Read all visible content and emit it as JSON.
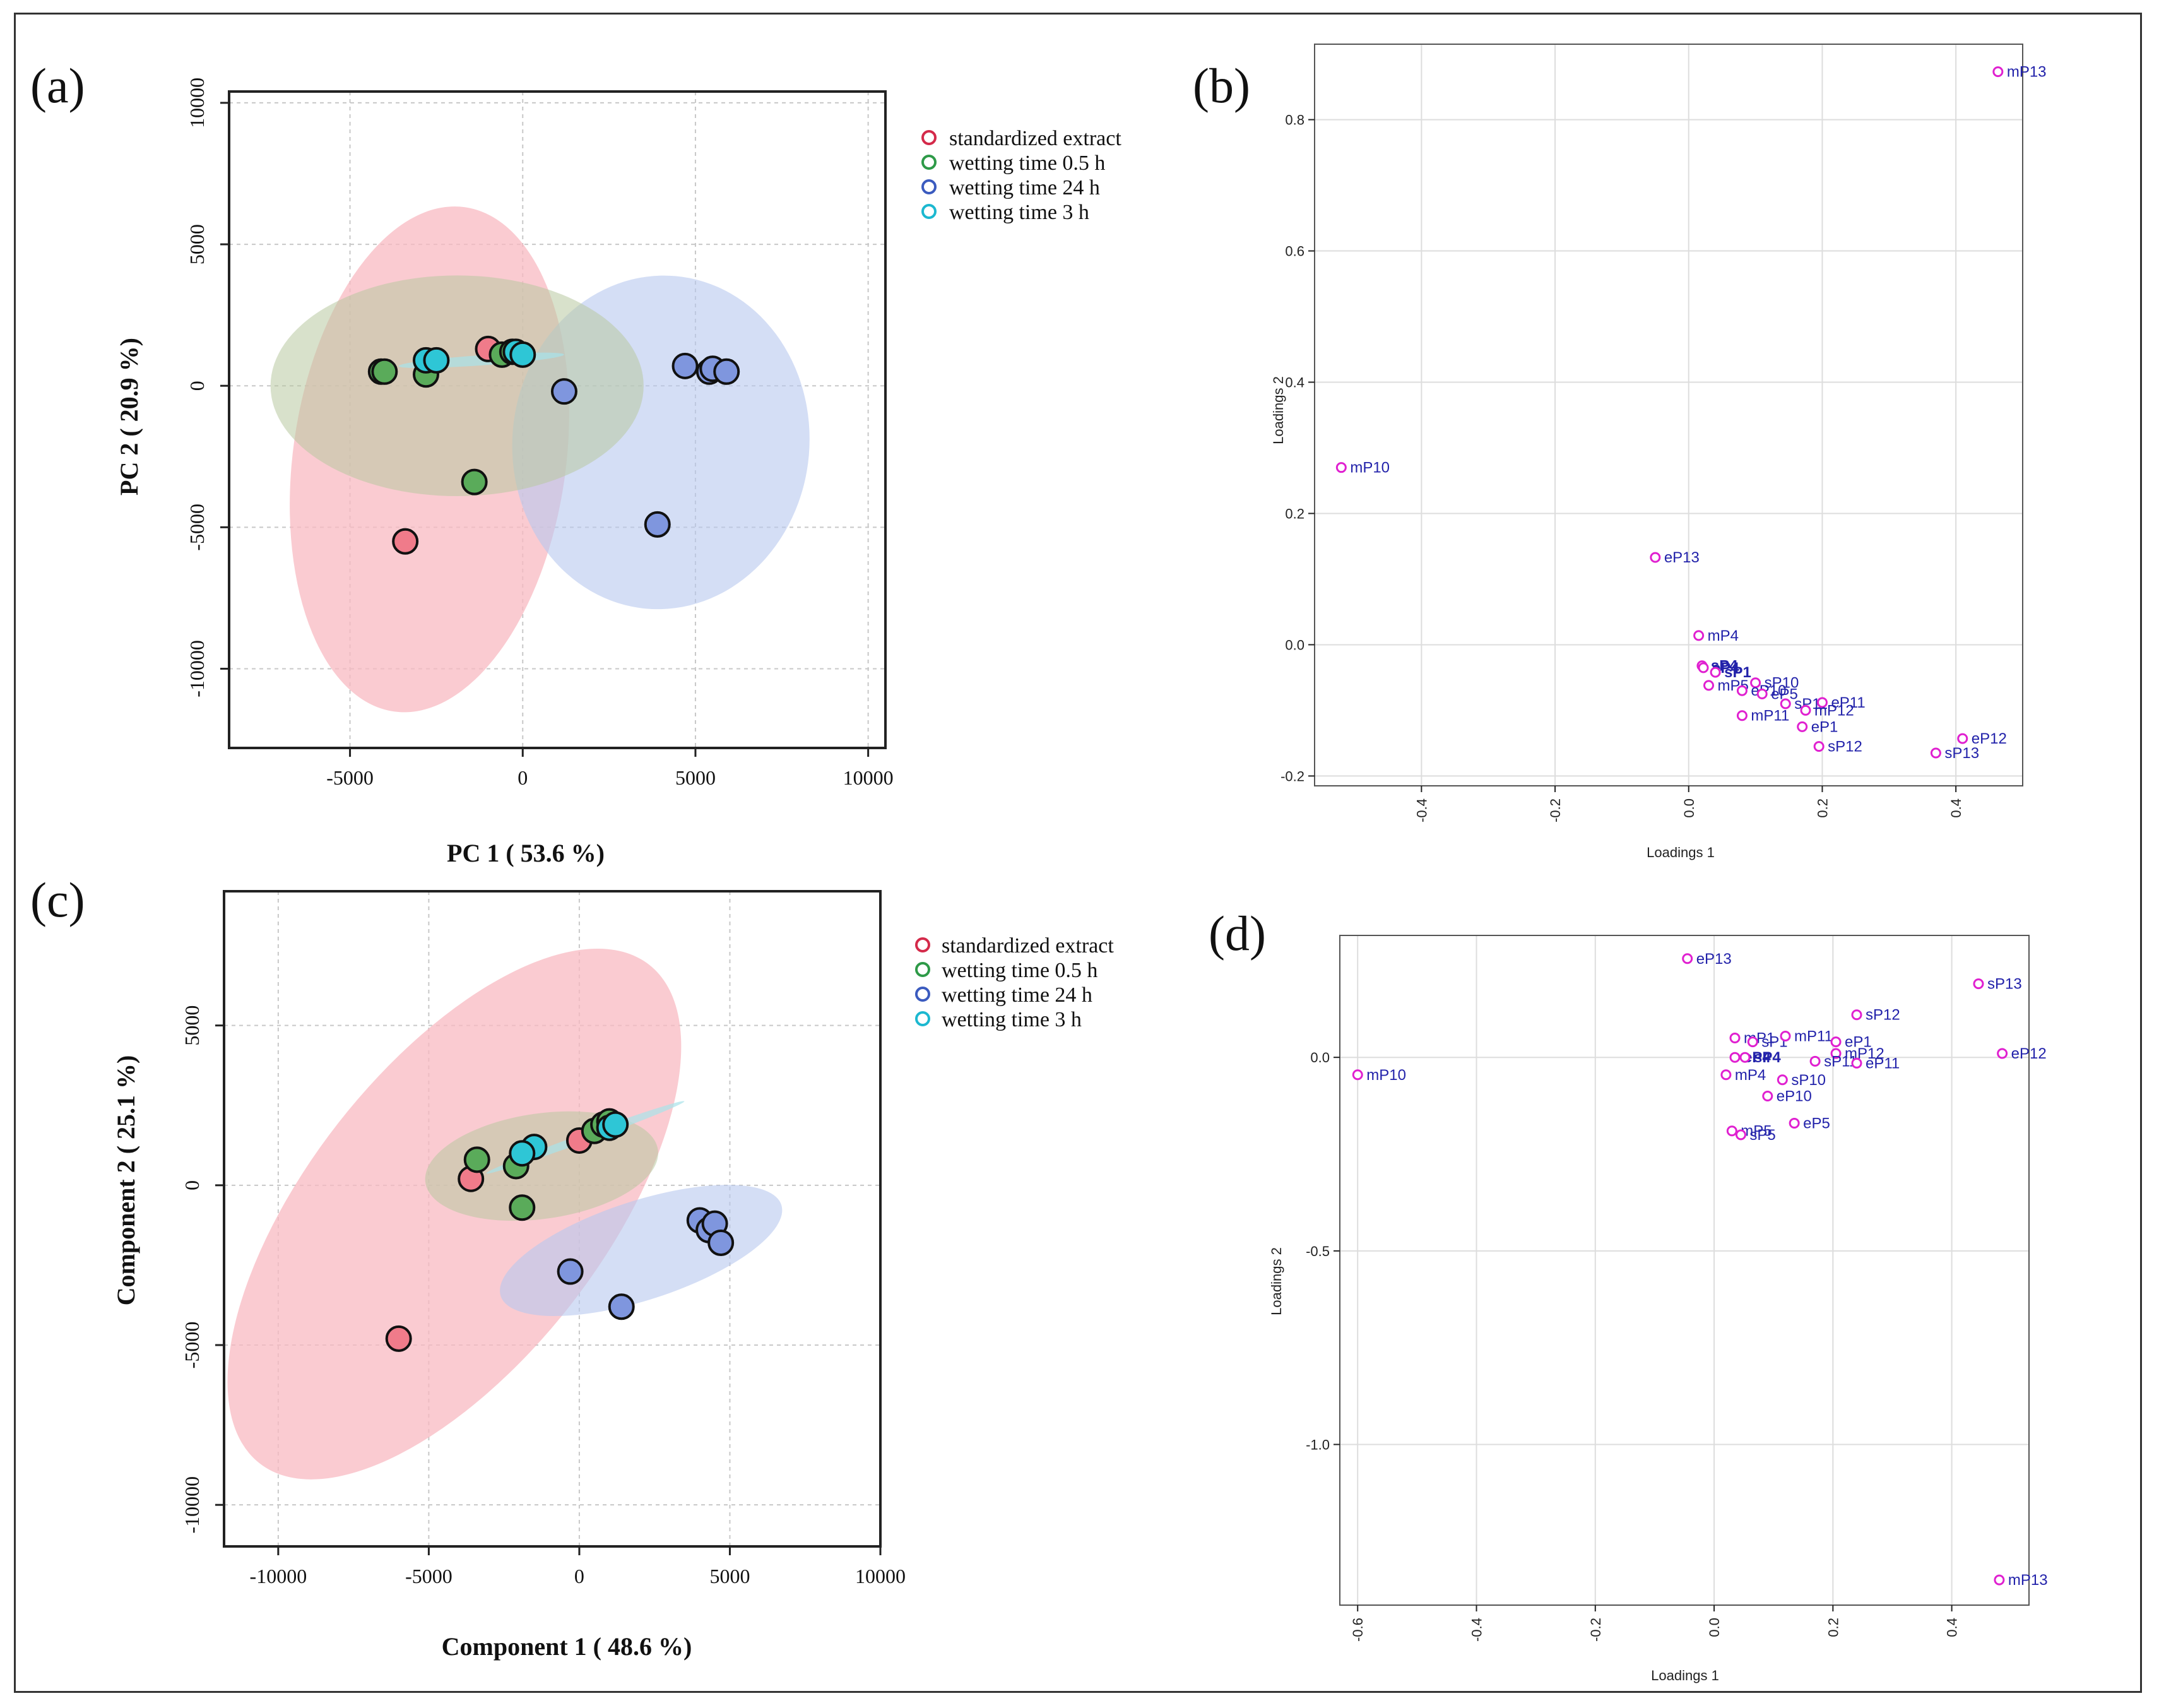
{
  "colors": {
    "standardized": "#f07b8a",
    "wetting_0_5": "#5aab5a",
    "wetting_24": "#7f96de",
    "wetting_3": "#2ec6d6",
    "ellipse_std": "#f8b9c2",
    "ellipse_05": "#b8c9a0",
    "ellipse_24": "#b8c8ee",
    "ellipse_3": "#a8e2ea",
    "loading_point": "#e020d0",
    "loading_label": "#2222aa"
  },
  "chart_data": [
    {
      "panel": "(a)",
      "type": "scatter",
      "xlabel": "PC 1 ( 53.6 %)",
      "ylabel": "PC 2 ( 20.9 %)",
      "xlim": [
        -8500,
        10500
      ],
      "ylim": [
        -12800,
        10400
      ],
      "xticks": [
        -5000,
        0,
        5000,
        10000
      ],
      "xtick_labels": [
        "-5000",
        "0",
        "5000",
        "10000"
      ],
      "yticks": [
        -10000,
        -5000,
        0,
        5000,
        10000
      ],
      "ytick_labels": [
        "-10000",
        "-5000",
        "0",
        "5000",
        "10000"
      ],
      "legend": [
        {
          "label": "standardized extract",
          "color_key": "standardized"
        },
        {
          "label": "wetting time 0.5 h",
          "color_key": "wetting_0_5"
        },
        {
          "label": "wetting time 24 h",
          "color_key": "wetting_24"
        },
        {
          "label": "wetting time 3 h",
          "color_key": "wetting_3"
        }
      ],
      "ellipses": [
        {
          "group": "standardized",
          "cx": -2700,
          "cy": -2600,
          "rx": 3950,
          "ry": 9000,
          "rot": 8,
          "color_key": "ellipse_std",
          "opacity": 0.75
        },
        {
          "group": "wetting_24",
          "cx": 4000,
          "cy": -2000,
          "rx": 4300,
          "ry": 5900,
          "rot": 5,
          "color_key": "ellipse_24",
          "opacity": 0.6
        },
        {
          "group": "wetting_0_5",
          "cx": -1900,
          "cy": 0,
          "rx": 5400,
          "ry": 3900,
          "rot": 0,
          "color_key": "ellipse_05",
          "opacity": 0.55
        },
        {
          "group": "wetting_3",
          "cx": -1200,
          "cy": 900,
          "rx": 2400,
          "ry": 180,
          "rot": -4,
          "color_key": "ellipse_3",
          "opacity": 0.7
        }
      ],
      "series": [
        {
          "name": "standardized extract",
          "color_key": "standardized",
          "points": [
            [
              -1000,
              1300
            ],
            [
              -3400,
              -5500
            ]
          ]
        },
        {
          "name": "wetting time 0.5 h",
          "color_key": "wetting_0_5",
          "points": [
            [
              -4100,
              500
            ],
            [
              -4000,
              500
            ],
            [
              -2800,
              400
            ],
            [
              -1400,
              -3400
            ],
            [
              -600,
              1100
            ],
            [
              -300,
              1200
            ]
          ]
        },
        {
          "name": "wetting time 24 h",
          "color_key": "wetting_24",
          "points": [
            [
              1200,
              -200
            ],
            [
              4700,
              700
            ],
            [
              5400,
              500
            ],
            [
              5500,
              600
            ],
            [
              5900,
              500
            ],
            [
              3900,
              -4900
            ]
          ]
        },
        {
          "name": "wetting time 3 h",
          "color_key": "wetting_3",
          "points": [
            [
              -2800,
              900
            ],
            [
              -2500,
              900
            ],
            [
              -200,
              1200
            ],
            [
              0,
              1100
            ]
          ]
        }
      ]
    },
    {
      "panel": "(b)",
      "type": "scatter",
      "xlabel": "Loadings 1",
      "ylabel": "Loadings 2",
      "xlim": [
        -0.56,
        0.5
      ],
      "ylim": [
        -0.215,
        0.915
      ],
      "xticks": [
        -0.4,
        -0.2,
        0.0,
        0.2,
        0.4
      ],
      "xtick_labels": [
        "-0.4",
        "-0.2",
        "0.0",
        "0.2",
        "0.4"
      ],
      "yticks": [
        -0.2,
        0.0,
        0.2,
        0.4,
        0.6,
        0.8
      ],
      "ytick_labels": [
        "-0.2",
        "0.0",
        "0.2",
        "0.4",
        "0.6",
        "0.8"
      ],
      "points": [
        {
          "label": "mP13",
          "x": 0.463,
          "y": 0.873
        },
        {
          "label": "mP10",
          "x": -0.52,
          "y": 0.27
        },
        {
          "label": "eP13",
          "x": -0.05,
          "y": 0.133
        },
        {
          "label": "mP4",
          "x": 0.015,
          "y": 0.014
        },
        {
          "label": "sP4",
          "x": 0.02,
          "y": -0.032,
          "bold": true
        },
        {
          "label": "eP4",
          "x": 0.022,
          "y": -0.035,
          "bold": true
        },
        {
          "label": "sP1",
          "x": 0.04,
          "y": -0.042,
          "bold": true
        },
        {
          "label": "mP5",
          "x": 0.03,
          "y": -0.062
        },
        {
          "label": "sP10",
          "x": 0.1,
          "y": -0.058
        },
        {
          "label": "eP10",
          "x": 0.08,
          "y": -0.07
        },
        {
          "label": "eP5",
          "x": 0.11,
          "y": -0.075
        },
        {
          "label": "sP11",
          "x": 0.145,
          "y": -0.09
        },
        {
          "label": "eP11",
          "x": 0.2,
          "y": -0.088
        },
        {
          "label": "mP12",
          "x": 0.175,
          "y": -0.1
        },
        {
          "label": "mP11",
          "x": 0.08,
          "y": -0.108
        },
        {
          "label": "eP1",
          "x": 0.17,
          "y": -0.125
        },
        {
          "label": "sP12",
          "x": 0.195,
          "y": -0.155
        },
        {
          "label": "eP12",
          "x": 0.41,
          "y": -0.143
        },
        {
          "label": "sP13",
          "x": 0.37,
          "y": -0.165
        }
      ]
    },
    {
      "panel": "(c)",
      "type": "scatter",
      "xlabel": "Component 1 ( 48.6 %)",
      "ylabel": "Component 2 ( 25.1 %)",
      "xlim": [
        -11800,
        10000
      ],
      "ylim": [
        -11300,
        9200
      ],
      "xticks": [
        -10000,
        -5000,
        0,
        5000,
        10000
      ],
      "xtick_labels": [
        "-10000",
        "-5000",
        "0",
        "5000",
        "10000"
      ],
      "yticks": [
        -10000,
        -5000,
        0,
        5000
      ],
      "ytick_labels": [
        "-10000",
        "-5000",
        "0",
        "5000"
      ],
      "legend": [
        {
          "label": "standardized extract",
          "color_key": "standardized"
        },
        {
          "label": "wetting time 0.5 h",
          "color_key": "wetting_0_5"
        },
        {
          "label": "wetting time 24 h",
          "color_key": "wetting_24"
        },
        {
          "label": "wetting time 3 h",
          "color_key": "wetting_3"
        }
      ],
      "ellipses": [
        {
          "group": "standardized",
          "cx": -4150,
          "cy": -900,
          "rx": 4900,
          "ry": 9900,
          "rot": 38,
          "color_key": "ellipse_std",
          "opacity": 0.75
        },
        {
          "group": "wetting_24",
          "cx": 2050,
          "cy": -2040,
          "rx": 4900,
          "ry": 1550,
          "rot": -18,
          "color_key": "ellipse_24",
          "opacity": 0.6
        },
        {
          "group": "wetting_0_5",
          "cx": -1250,
          "cy": 600,
          "rx": 3900,
          "ry": 1650,
          "rot": -8,
          "color_key": "ellipse_05",
          "opacity": 0.55
        },
        {
          "group": "wetting_3",
          "cx": 200,
          "cy": 1500,
          "rx": 3500,
          "ry": 130,
          "rot": -20,
          "color_key": "ellipse_3",
          "opacity": 0.7
        }
      ],
      "series": [
        {
          "name": "standardized extract",
          "color_key": "standardized",
          "points": [
            [
              -6000,
              -4800
            ],
            [
              -3600,
              200
            ],
            [
              0,
              1400
            ]
          ]
        },
        {
          "name": "wetting time 0.5 h",
          "color_key": "wetting_0_5",
          "points": [
            [
              -3400,
              800
            ],
            [
              -2100,
              600
            ],
            [
              -1900,
              -700
            ],
            [
              500,
              1700
            ],
            [
              800,
              1900
            ],
            [
              1000,
              2000
            ]
          ]
        },
        {
          "name": "wetting time 24 h",
          "color_key": "wetting_24",
          "points": [
            [
              4000,
              -1100
            ],
            [
              4300,
              -1400
            ],
            [
              4500,
              -1200
            ],
            [
              4700,
              -1800
            ],
            [
              -300,
              -2700
            ],
            [
              1400,
              -3800
            ]
          ]
        },
        {
          "name": "wetting time 3 h",
          "color_key": "wetting_3",
          "points": [
            [
              -1500,
              1200
            ],
            [
              -1900,
              1000
            ],
            [
              1000,
              1800
            ],
            [
              1200,
              1900
            ]
          ]
        }
      ]
    },
    {
      "panel": "(d)",
      "type": "scatter",
      "xlabel": "Loadings 1",
      "ylabel": "Loadings 2",
      "xlim": [
        -0.63,
        0.53
      ],
      "ylim": [
        -1.415,
        0.315
      ],
      "xticks": [
        -0.6,
        -0.4,
        -0.2,
        0.0,
        0.2,
        0.4
      ],
      "xtick_labels": [
        "-0.6",
        "-0.4",
        "-0.2",
        "0.0",
        "0.2",
        "0.4"
      ],
      "yticks": [
        -1.0,
        -0.5,
        0.0
      ],
      "ytick_labels": [
        "-1.0",
        "-0.5",
        "0.0"
      ],
      "points": [
        {
          "label": "eP13",
          "x": -0.045,
          "y": 0.255
        },
        {
          "label": "sP13",
          "x": 0.445,
          "y": 0.19
        },
        {
          "label": "sP12",
          "x": 0.24,
          "y": 0.11
        },
        {
          "label": "mP1",
          "x": 0.035,
          "y": 0.05
        },
        {
          "label": "sP1",
          "x": 0.065,
          "y": 0.04
        },
        {
          "label": "mP11",
          "x": 0.12,
          "y": 0.055
        },
        {
          "label": "eP1",
          "x": 0.205,
          "y": 0.04
        },
        {
          "label": "mP12",
          "x": 0.205,
          "y": 0.01
        },
        {
          "label": "eP4",
          "x": 0.035,
          "y": 0.0,
          "bold": true
        },
        {
          "label": "sP4",
          "x": 0.052,
          "y": 0.0,
          "bold": true
        },
        {
          "label": "sP11",
          "x": 0.17,
          "y": -0.01
        },
        {
          "label": "eP11",
          "x": 0.24,
          "y": -0.015
        },
        {
          "label": "eP12",
          "x": 0.485,
          "y": 0.01
        },
        {
          "label": "mP10",
          "x": -0.6,
          "y": -0.045
        },
        {
          "label": "mP4",
          "x": 0.02,
          "y": -0.045
        },
        {
          "label": "sP10",
          "x": 0.115,
          "y": -0.058
        },
        {
          "label": "eP10",
          "x": 0.09,
          "y": -0.1
        },
        {
          "label": "eP5",
          "x": 0.135,
          "y": -0.17
        },
        {
          "label": "mP5",
          "x": 0.03,
          "y": -0.19
        },
        {
          "label": "sP5",
          "x": 0.045,
          "y": -0.2
        },
        {
          "label": "mP13",
          "x": 0.48,
          "y": -1.35
        }
      ]
    }
  ]
}
